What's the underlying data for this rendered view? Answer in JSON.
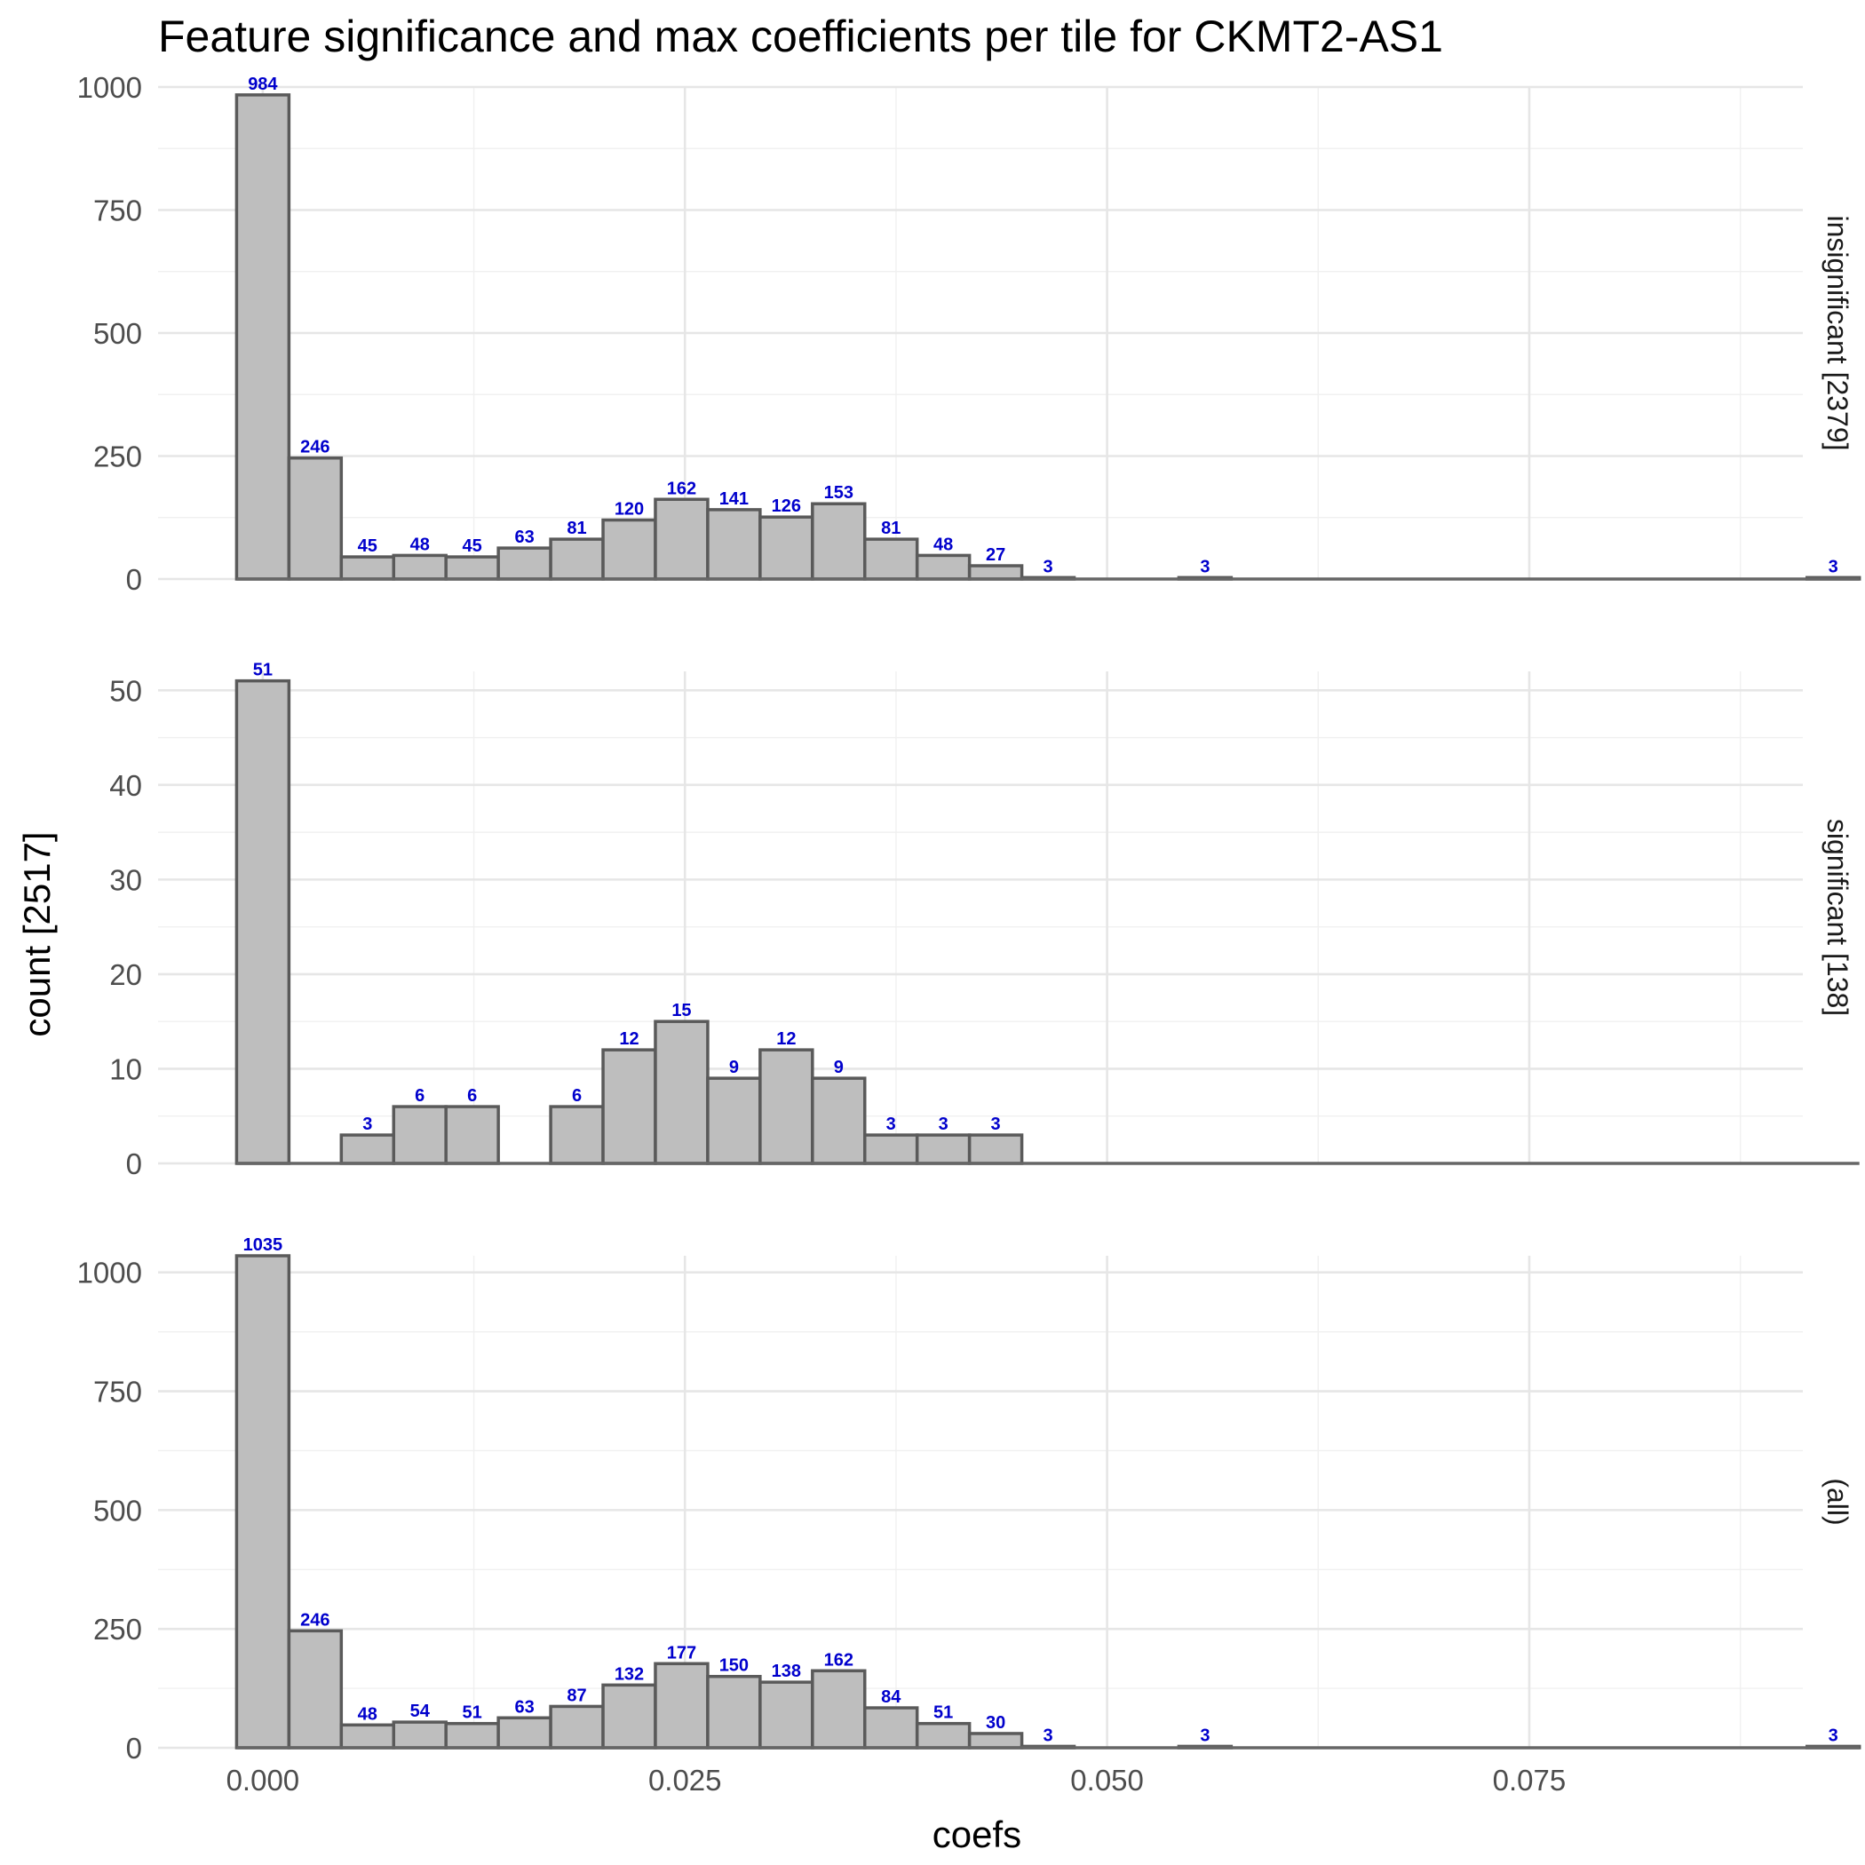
{
  "chart_data": {
    "type": "bar",
    "title": "Feature significance and max coefficients per tile for CKMT2-AS1",
    "xlabel": "coefs",
    "ylabel": "count [2517]",
    "grid": true,
    "legend": "none",
    "bar_fill": "#bebebe",
    "bar_outline": "#5a5a5a",
    "label_color": "#0000cc",
    "x_range": [
      -0.0062,
      0.0912
    ],
    "bin_width": 0.0031,
    "bin_start": -0.00155,
    "x_ticks": [
      {
        "value": 0.0,
        "label": "0.000"
      },
      {
        "value": 0.025,
        "label": "0.025"
      },
      {
        "value": 0.05,
        "label": "0.050"
      },
      {
        "value": 0.075,
        "label": "0.075"
      }
    ],
    "panels": [
      {
        "name": "insignificant [2379]",
        "ylim": [
          0,
          1000
        ],
        "y_ticks": [
          0,
          250,
          500,
          750,
          1000
        ],
        "counts": [
          984,
          246,
          45,
          48,
          45,
          63,
          81,
          120,
          162,
          141,
          126,
          153,
          81,
          48,
          27,
          3,
          0,
          0,
          3,
          0,
          0,
          0,
          0,
          0,
          0,
          0,
          0,
          0,
          0,
          0,
          3
        ],
        "bar_labels": [
          "984",
          "246",
          "45",
          "48",
          "45",
          "63",
          "81",
          "120",
          "162",
          "141",
          "126",
          "153",
          "81",
          "48",
          "27",
          "3",
          "",
          "",
          "3",
          "",
          "",
          "",
          "",
          "",
          "",
          "",
          "",
          "",
          "",
          "",
          "3"
        ]
      },
      {
        "name": "significant [138]",
        "ylim": [
          0,
          52
        ],
        "y_ticks": [
          0,
          10,
          20,
          30,
          40,
          50
        ],
        "counts": [
          51,
          0,
          3,
          6,
          6,
          0,
          6,
          12,
          15,
          9,
          12,
          9,
          3,
          3,
          3,
          0,
          0,
          0,
          0,
          0,
          0,
          0,
          0,
          0,
          0,
          0,
          0,
          0,
          0,
          0,
          0
        ],
        "bar_labels": [
          "51",
          "",
          "3",
          "6",
          "6",
          "",
          "6",
          "12",
          "15",
          "9",
          "12",
          "9",
          "3",
          "3",
          "3",
          "",
          "",
          "",
          "",
          "",
          "",
          "",
          "",
          "",
          "",
          "",
          "",
          "",
          "",
          "",
          ""
        ]
      },
      {
        "name": "(all)",
        "ylim": [
          0,
          1035
        ],
        "y_ticks": [
          0,
          250,
          500,
          750,
          1000
        ],
        "counts": [
          1035,
          246,
          48,
          54,
          51,
          63,
          87,
          132,
          177,
          150,
          138,
          162,
          84,
          51,
          30,
          3,
          0,
          0,
          3,
          0,
          0,
          0,
          0,
          0,
          0,
          0,
          0,
          0,
          0,
          0,
          3
        ],
        "bar_labels": [
          "1035",
          "246",
          "48",
          "54",
          "51",
          "63",
          "87",
          "132",
          "177",
          "150",
          "138",
          "162",
          "84",
          "51",
          "30",
          "3",
          "",
          "",
          "3",
          "",
          "",
          "",
          "",
          "",
          "",
          "",
          "",
          "",
          "",
          "",
          "3"
        ]
      }
    ]
  }
}
